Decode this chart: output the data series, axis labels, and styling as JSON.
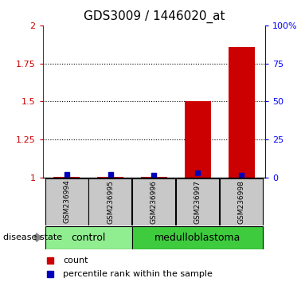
{
  "title": "GDS3009 / 1446020_at",
  "samples": [
    "GSM236994",
    "GSM236995",
    "GSM236996",
    "GSM236997",
    "GSM236998"
  ],
  "red_values": [
    1.005,
    1.005,
    1.005,
    1.5,
    1.86
  ],
  "blue_values": [
    2.0,
    2.0,
    1.5,
    3.0,
    1.5
  ],
  "groups": [
    {
      "label": "control",
      "start": 0,
      "end": 1,
      "color": "#90EE90"
    },
    {
      "label": "medulloblastoma",
      "start": 2,
      "end": 4,
      "color": "#3ECC3E"
    }
  ],
  "ylim_left": [
    1.0,
    2.0
  ],
  "ylim_right": [
    0,
    100
  ],
  "yticks_left": [
    1.0,
    1.25,
    1.5,
    1.75,
    2.0
  ],
  "yticks_right": [
    0,
    25,
    50,
    75,
    100
  ],
  "ytick_labels_right": [
    "0",
    "25",
    "50",
    "75",
    "100%"
  ],
  "ytick_labels_left": [
    "1",
    "1.25",
    "1.5",
    "1.75",
    "2"
  ],
  "red_color": "#CC0000",
  "blue_color": "#0000BB",
  "bar_width": 0.6,
  "bg_color": "#FFFFFF",
  "sample_box_color": "#C8C8C8",
  "title_fontsize": 11,
  "tick_fontsize": 8,
  "legend_red_label": "count",
  "legend_blue_label": "percentile rank within the sample",
  "disease_state_label": "disease state"
}
